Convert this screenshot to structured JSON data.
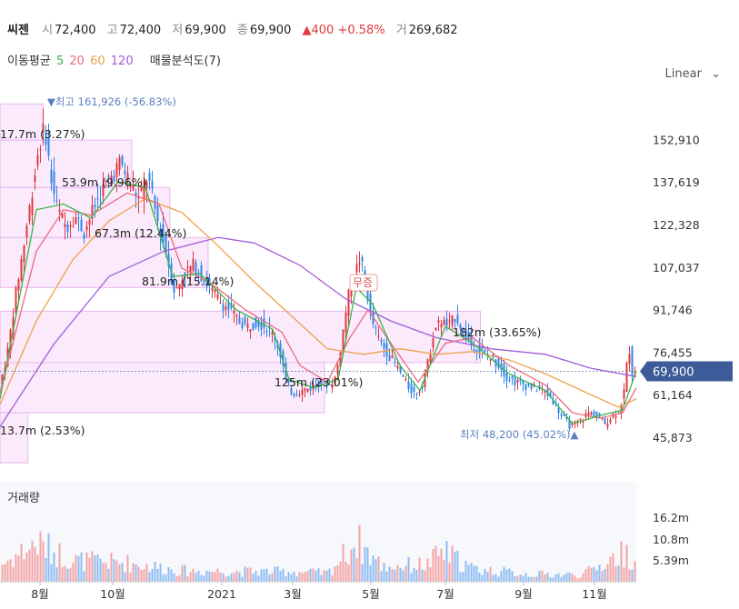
{
  "header": {
    "name": "씨젠",
    "open_label": "시",
    "open": "72,400",
    "high_label": "고",
    "high": "72,400",
    "low_label": "저",
    "low": "69,900",
    "close_label": "종",
    "close": "69,900",
    "change": "▲400 +0.58%",
    "volume_label": "거",
    "volume": "269,682"
  },
  "ma_legend": {
    "label": "이동평균",
    "p5": "5",
    "p20": "20",
    "p60": "60",
    "p120": "120",
    "profile": "매물분석도(7)"
  },
  "scale_label": "Linear",
  "volume_title": "거래량",
  "colors": {
    "up": "#e0393e",
    "down": "#2f86e8",
    "ma5": "#3cb44b",
    "ma20": "#ec6b7f",
    "ma60": "#f0a04b",
    "ma120": "#a15bdc",
    "profile": "#f5d9f8",
    "price_tag": "#3d5a99"
  },
  "chart_data": {
    "type": "candlestick",
    "x_ticks": [
      "8월",
      "10월",
      "2021",
      "3월",
      "5월",
      "7월",
      "9월",
      "11월"
    ],
    "y_ticks": [
      152910,
      137619,
      122328,
      107037,
      91746,
      76455,
      61164,
      45873
    ],
    "ylim": [
      40000,
      172000
    ],
    "current_price": {
      "value": 69900,
      "label": "69,900"
    },
    "high_marker": "▼최고 161,926 (-56.83%)",
    "low_marker": "최저 48,200 (45.02%)▲",
    "event_label": "무증",
    "volume_ticks": [
      "16.2m",
      "10.8m",
      "5.39m"
    ],
    "volume_profile": [
      {
        "label": "17.7m (3.27%)",
        "lo": 153000,
        "hi": 166000,
        "width": 0.068
      },
      {
        "label": "53.9m (9.96%)",
        "lo": 136000,
        "hi": 153000,
        "width": 0.207
      },
      {
        "label": "67.3m (12.44%)",
        "lo": 118000,
        "hi": 136000,
        "width": 0.267
      },
      {
        "label": "81.9m (15.14%)",
        "lo": 100000,
        "hi": 118000,
        "width": 0.327
      },
      {
        "label": "182m (33.65%)",
        "lo": 73000,
        "hi": 91500,
        "width": 0.755
      },
      {
        "label": "125m (23.01%)",
        "lo": 55000,
        "hi": 73000,
        "width": 0.51
      },
      {
        "label": "13.7m (2.53%)",
        "lo": 37000,
        "hi": 55000,
        "width": 0.044
      }
    ],
    "path": [
      [
        0,
        62000
      ],
      [
        10,
        75000
      ],
      [
        20,
        98000
      ],
      [
        30,
        118000
      ],
      [
        38,
        135000
      ],
      [
        45,
        150000
      ],
      [
        52,
        158000
      ],
      [
        58,
        140000
      ],
      [
        66,
        128000
      ],
      [
        75,
        122000
      ],
      [
        85,
        126000
      ],
      [
        95,
        120000
      ],
      [
        105,
        128000
      ],
      [
        115,
        135000
      ],
      [
        125,
        140000
      ],
      [
        135,
        145000
      ],
      [
        145,
        138000
      ],
      [
        155,
        132000
      ],
      [
        165,
        140000
      ],
      [
        175,
        125000
      ],
      [
        185,
        113000
      ],
      [
        195,
        98000
      ],
      [
        205,
        105000
      ],
      [
        215,
        108000
      ],
      [
        225,
        104000
      ],
      [
        235,
        99000
      ],
      [
        245,
        95000
      ],
      [
        255,
        92000
      ],
      [
        265,
        88000
      ],
      [
        275,
        86000
      ],
      [
        285,
        88000
      ],
      [
        295,
        86000
      ],
      [
        305,
        82000
      ],
      [
        312,
        75000
      ],
      [
        318,
        65000
      ],
      [
        325,
        62000
      ],
      [
        335,
        63000
      ],
      [
        345,
        64000
      ],
      [
        355,
        66000
      ],
      [
        365,
        65000
      ],
      [
        372,
        68000
      ],
      [
        378,
        80000
      ],
      [
        385,
        96000
      ],
      [
        392,
        104000
      ],
      [
        398,
        110000
      ],
      [
        404,
        104000
      ],
      [
        410,
        90000
      ],
      [
        418,
        82000
      ],
      [
        426,
        78000
      ],
      [
        434,
        74000
      ],
      [
        442,
        70000
      ],
      [
        450,
        65000
      ],
      [
        458,
        62000
      ],
      [
        466,
        64000
      ],
      [
        474,
        74000
      ],
      [
        480,
        85000
      ],
      [
        488,
        88000
      ],
      [
        496,
        86000
      ],
      [
        504,
        90000
      ],
      [
        512,
        84000
      ],
      [
        520,
        80000
      ],
      [
        528,
        78000
      ],
      [
        536,
        76000
      ],
      [
        544,
        74000
      ],
      [
        552,
        72000
      ],
      [
        560,
        68000
      ],
      [
        570,
        66000
      ],
      [
        580,
        65000
      ],
      [
        590,
        64000
      ],
      [
        600,
        63000
      ],
      [
        610,
        60000
      ],
      [
        620,
        54000
      ],
      [
        630,
        50000
      ],
      [
        640,
        52000
      ],
      [
        650,
        55000
      ],
      [
        660,
        54000
      ],
      [
        668,
        51000
      ],
      [
        676,
        54000
      ],
      [
        684,
        56000
      ],
      [
        690,
        64000
      ],
      [
        694,
        80000
      ],
      [
        698,
        70000
      ],
      [
        700,
        69900
      ]
    ],
    "ma5": [
      [
        0,
        60000
      ],
      [
        40,
        128000
      ],
      [
        70,
        130000
      ],
      [
        100,
        125000
      ],
      [
        130,
        138000
      ],
      [
        160,
        136000
      ],
      [
        190,
        104000
      ],
      [
        220,
        105000
      ],
      [
        260,
        92000
      ],
      [
        300,
        85000
      ],
      [
        318,
        67000
      ],
      [
        345,
        64000
      ],
      [
        372,
        67000
      ],
      [
        392,
        100000
      ],
      [
        410,
        94000
      ],
      [
        440,
        72000
      ],
      [
        462,
        63000
      ],
      [
        490,
        86000
      ],
      [
        520,
        80000
      ],
      [
        560,
        69000
      ],
      [
        600,
        63000
      ],
      [
        630,
        51000
      ],
      [
        660,
        54000
      ],
      [
        685,
        56000
      ],
      [
        700,
        70000
      ]
    ],
    "ma20": [
      [
        0,
        62000
      ],
      [
        40,
        113000
      ],
      [
        70,
        128000
      ],
      [
        100,
        126000
      ],
      [
        140,
        134000
      ],
      [
        175,
        130000
      ],
      [
        200,
        107000
      ],
      [
        230,
        102000
      ],
      [
        270,
        92000
      ],
      [
        310,
        84000
      ],
      [
        330,
        72000
      ],
      [
        360,
        66000
      ],
      [
        385,
        82000
      ],
      [
        405,
        92000
      ],
      [
        430,
        80000
      ],
      [
        460,
        66000
      ],
      [
        490,
        80000
      ],
      [
        520,
        82000
      ],
      [
        560,
        72000
      ],
      [
        600,
        65000
      ],
      [
        630,
        55000
      ],
      [
        660,
        53000
      ],
      [
        685,
        55000
      ],
      [
        700,
        64000
      ]
    ],
    "ma60": [
      [
        0,
        58000
      ],
      [
        40,
        88000
      ],
      [
        80,
        110000
      ],
      [
        120,
        124000
      ],
      [
        160,
        132000
      ],
      [
        200,
        127000
      ],
      [
        240,
        115000
      ],
      [
        280,
        102000
      ],
      [
        320,
        90000
      ],
      [
        360,
        78000
      ],
      [
        400,
        76000
      ],
      [
        440,
        78000
      ],
      [
        480,
        76000
      ],
      [
        520,
        77000
      ],
      [
        560,
        74000
      ],
      [
        600,
        69000
      ],
      [
        640,
        63000
      ],
      [
        680,
        57000
      ],
      [
        700,
        60000
      ]
    ],
    "ma120": [
      [
        0,
        50000
      ],
      [
        60,
        80000
      ],
      [
        120,
        104000
      ],
      [
        180,
        113000
      ],
      [
        240,
        118000
      ],
      [
        280,
        116000
      ],
      [
        330,
        108000
      ],
      [
        380,
        96000
      ],
      [
        430,
        88000
      ],
      [
        480,
        82000
      ],
      [
        540,
        78000
      ],
      [
        600,
        76000
      ],
      [
        650,
        71000
      ],
      [
        700,
        68000
      ]
    ],
    "vol_path": [
      [
        0,
        0.2
      ],
      [
        40,
        0.45
      ],
      [
        80,
        0.25
      ],
      [
        140,
        0.22
      ],
      [
        200,
        0.13
      ],
      [
        260,
        0.12
      ],
      [
        320,
        0.12
      ],
      [
        360,
        0.1
      ],
      [
        392,
        0.48
      ],
      [
        420,
        0.18
      ],
      [
        470,
        0.2
      ],
      [
        486,
        0.36
      ],
      [
        520,
        0.15
      ],
      [
        580,
        0.09
      ],
      [
        640,
        0.08
      ],
      [
        688,
        0.35
      ],
      [
        700,
        0.2
      ]
    ]
  }
}
